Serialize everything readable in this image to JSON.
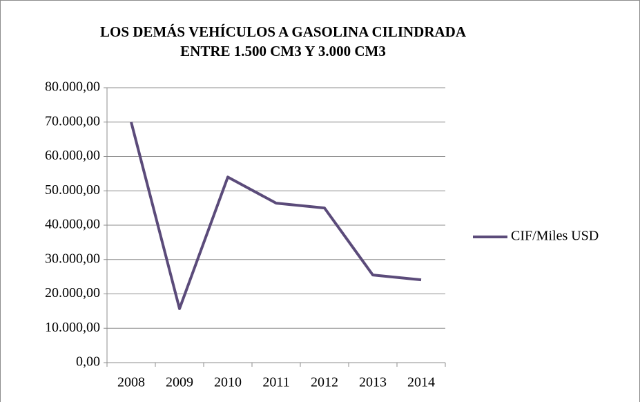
{
  "chart_data": {
    "type": "line",
    "title": [
      "LOS DEMÁS VEHÍCULOS A GASOLINA CILINDRADA",
      "ENTRE 1.500 CM3 Y 3.000 CM3"
    ],
    "categories": [
      "2008",
      "2009",
      "2010",
      "2011",
      "2012",
      "2013",
      "2014"
    ],
    "series": [
      {
        "name": "CIF/Miles USD",
        "color": "#5b4b7a",
        "values": [
          70000,
          15700,
          54000,
          46400,
          45000,
          25500,
          24100
        ]
      }
    ],
    "ylim": [
      0,
      80000
    ],
    "yticks": [
      {
        "value": 0,
        "label": "0,00"
      },
      {
        "value": 10000,
        "label": "10.000,00"
      },
      {
        "value": 20000,
        "label": "20.000,00"
      },
      {
        "value": 30000,
        "label": "30.000,00"
      },
      {
        "value": 40000,
        "label": "40.000,00"
      },
      {
        "value": 50000,
        "label": "50.000,00"
      },
      {
        "value": 60000,
        "label": "60.000,00"
      },
      {
        "value": 70000,
        "label": "70.000,00"
      },
      {
        "value": 80000,
        "label": "80.000,00"
      }
    ],
    "grid": true,
    "legend": "right"
  }
}
